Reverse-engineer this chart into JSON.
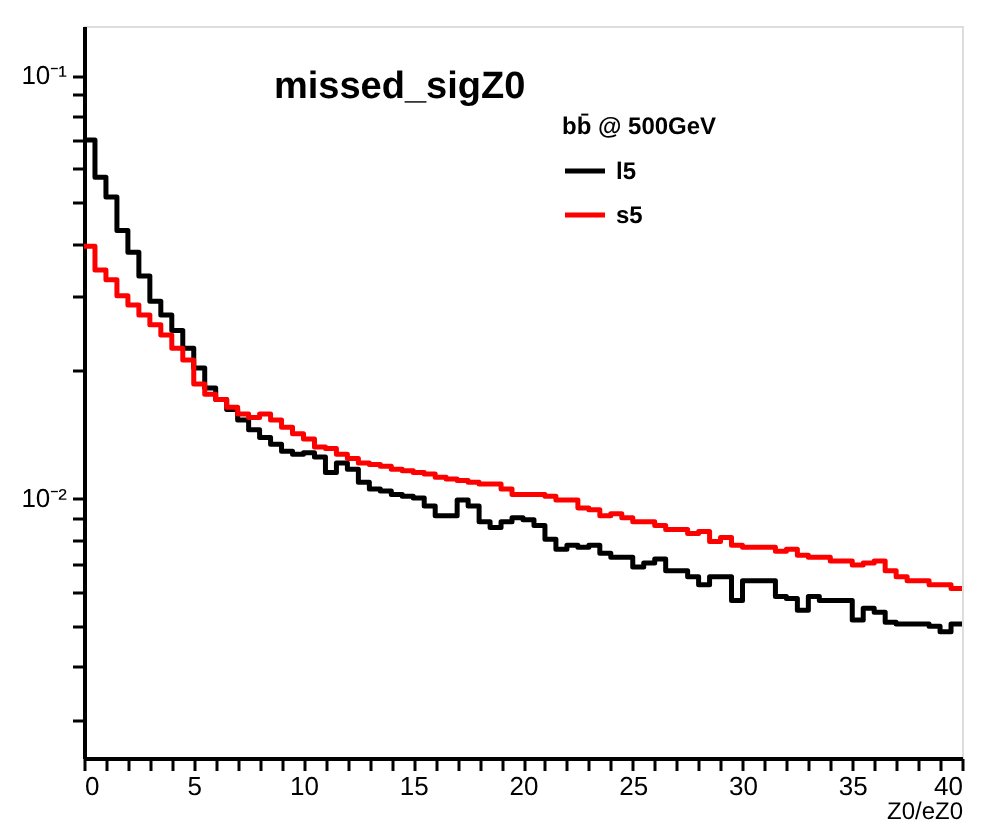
{
  "chart_data": {
    "type": "histogram",
    "title": "missed_sigZ0",
    "xlabel": "Z0/eZ0",
    "legend_title": "bb̄ @ 500GeV",
    "legend": "top right",
    "grid": false,
    "line_style": "solid",
    "log": "y",
    "bins": [
      0,
      0.5,
      1,
      1.5,
      2,
      2.5,
      3,
      3.5,
      4,
      4.5,
      5,
      5.5,
      6,
      6.5,
      7,
      7.5,
      8,
      8.5,
      9,
      9.5,
      10,
      10.5,
      11,
      11.5,
      12,
      12.5,
      13,
      13.5,
      14,
      14.5,
      15,
      15.5,
      16,
      16.5,
      17,
      17.5,
      18,
      18.5,
      19,
      19.5,
      20,
      20.5,
      21,
      21.5,
      22,
      22.5,
      23,
      23.5,
      24,
      24.5,
      25,
      25.5,
      26,
      26.5,
      27,
      27.5,
      28,
      28.5,
      29,
      29.5,
      30,
      30.5,
      31,
      31.5,
      32,
      32.5,
      33,
      33.5,
      34,
      34.5,
      35,
      35.5,
      36,
      36.5,
      37,
      37.5,
      38,
      38.5,
      39,
      39.5,
      40
    ],
    "series": [
      {
        "name": "l5",
        "color": "#000000",
        "values": [
          0.0702,
          0.0573,
          0.0515,
          0.0429,
          0.0381,
          0.0335,
          0.0292,
          0.0271,
          0.0249,
          0.0226,
          0.0203,
          0.0182,
          0.0171,
          0.0162,
          0.0153,
          0.0145,
          0.0139,
          0.0134,
          0.0129,
          0.0127,
          0.0128,
          0.0125,
          0.0115,
          0.0121,
          0.0117,
          0.0109,
          0.0105,
          0.0104,
          0.0102,
          0.0101,
          0.01,
          0.00958,
          0.00908,
          0.00908,
          0.00989,
          0.00958,
          0.00879,
          0.00852,
          0.00879,
          0.00898,
          0.00889,
          0.00861,
          0.00799,
          0.00757,
          0.00774,
          0.00765,
          0.00774,
          0.00741,
          0.00725,
          0.00725,
          0.00687,
          0.00702,
          0.00718,
          0.00673,
          0.00673,
          0.00652,
          0.00624,
          0.00652,
          0.00652,
          0.00573,
          0.00638,
          0.00638,
          0.00638,
          0.00585,
          0.00579,
          0.00543,
          0.00585,
          0.00573,
          0.00573,
          0.00573,
          0.00515,
          0.00549,
          0.00537,
          0.00509,
          0.00504,
          0.00504,
          0.00504,
          0.00498,
          0.00483,
          0.00504
        ]
      },
      {
        "name": "s5",
        "color": "#ff0000",
        "values": [
          0.0394,
          0.0346,
          0.0328,
          0.0301,
          0.0286,
          0.0271,
          0.0257,
          0.0243,
          0.0226,
          0.0212,
          0.0186,
          0.0176,
          0.0171,
          0.0164,
          0.0158,
          0.0155,
          0.0158,
          0.0153,
          0.0147,
          0.0142,
          0.0138,
          0.0132,
          0.0131,
          0.0127,
          0.0124,
          0.0121,
          0.012,
          0.0119,
          0.0117,
          0.0116,
          0.0115,
          0.0114,
          0.0112,
          0.0111,
          0.011,
          0.0109,
          0.0108,
          0.0108,
          0.0105,
          0.0102,
          0.0102,
          0.0102,
          0.0101,
          0.00989,
          0.00989,
          0.00948,
          0.00938,
          0.00908,
          0.00918,
          0.00898,
          0.00879,
          0.00879,
          0.00861,
          0.00843,
          0.00843,
          0.00825,
          0.00834,
          0.0079,
          0.00807,
          0.00774,
          0.00765,
          0.00765,
          0.00765,
          0.00749,
          0.00757,
          0.00733,
          0.00725,
          0.00725,
          0.0071,
          0.0071,
          0.00695,
          0.00702,
          0.0071,
          0.00673,
          0.00652,
          0.00638,
          0.00638,
          0.00624,
          0.00624,
          0.00611
        ]
      }
    ],
    "xlim": [
      0,
      40
    ],
    "xticks": [
      0,
      {
        "value": 1,
        "label": null
      },
      {
        "value": 2,
        "label": null
      },
      {
        "value": 3,
        "label": null
      },
      {
        "value": 4,
        "label": null
      },
      5,
      {
        "value": 6,
        "label": null
      },
      {
        "value": 7,
        "label": null
      },
      {
        "value": 8,
        "label": null
      },
      {
        "value": 9,
        "label": null
      },
      10,
      {
        "value": 11,
        "label": null
      },
      {
        "value": 12,
        "label": null
      },
      {
        "value": 13,
        "label": null
      },
      {
        "value": 14,
        "label": null
      },
      15,
      {
        "value": 16,
        "label": null
      },
      {
        "value": 17,
        "label": null
      },
      {
        "value": 18,
        "label": null
      },
      {
        "value": 19,
        "label": null
      },
      20,
      {
        "value": 21,
        "label": null
      },
      {
        "value": 22,
        "label": null
      },
      {
        "value": 23,
        "label": null
      },
      {
        "value": 24,
        "label": null
      },
      25,
      {
        "value": 26,
        "label": null
      },
      {
        "value": 27,
        "label": null
      },
      {
        "value": 28,
        "label": null
      },
      {
        "value": 29,
        "label": null
      },
      30,
      {
        "value": 31,
        "label": null
      },
      {
        "value": 32,
        "label": null
      },
      {
        "value": 33,
        "label": null
      },
      {
        "value": 34,
        "label": null
      },
      35,
      {
        "value": 36,
        "label": null
      },
      {
        "value": 37,
        "label": null
      },
      {
        "value": 38,
        "label": null
      },
      {
        "value": 39,
        "label": null
      },
      40
    ],
    "ylim": [
      0.00243,
      0.1306
    ],
    "yticks": [
      {
        "value": 0.003,
        "label": null
      },
      {
        "value": 0.004,
        "label": null
      },
      {
        "value": 0.005,
        "label": null
      },
      {
        "value": 0.006,
        "label": null
      },
      {
        "value": 0.007,
        "label": null
      },
      {
        "value": 0.008,
        "label": null
      },
      {
        "value": 0.009,
        "label": null
      },
      {
        "value": 0.01,
        "label": "10⁻²"
      },
      {
        "value": 0.02,
        "label": null
      },
      {
        "value": 0.03,
        "label": null
      },
      {
        "value": 0.04,
        "label": null
      },
      {
        "value": 0.05,
        "label": null
      },
      {
        "value": 0.06,
        "label": null
      },
      {
        "value": 0.07,
        "label": null
      },
      {
        "value": 0.08,
        "label": null
      },
      {
        "value": 0.09,
        "label": null
      },
      {
        "value": 0.1,
        "label": "10⁻¹"
      }
    ]
  }
}
